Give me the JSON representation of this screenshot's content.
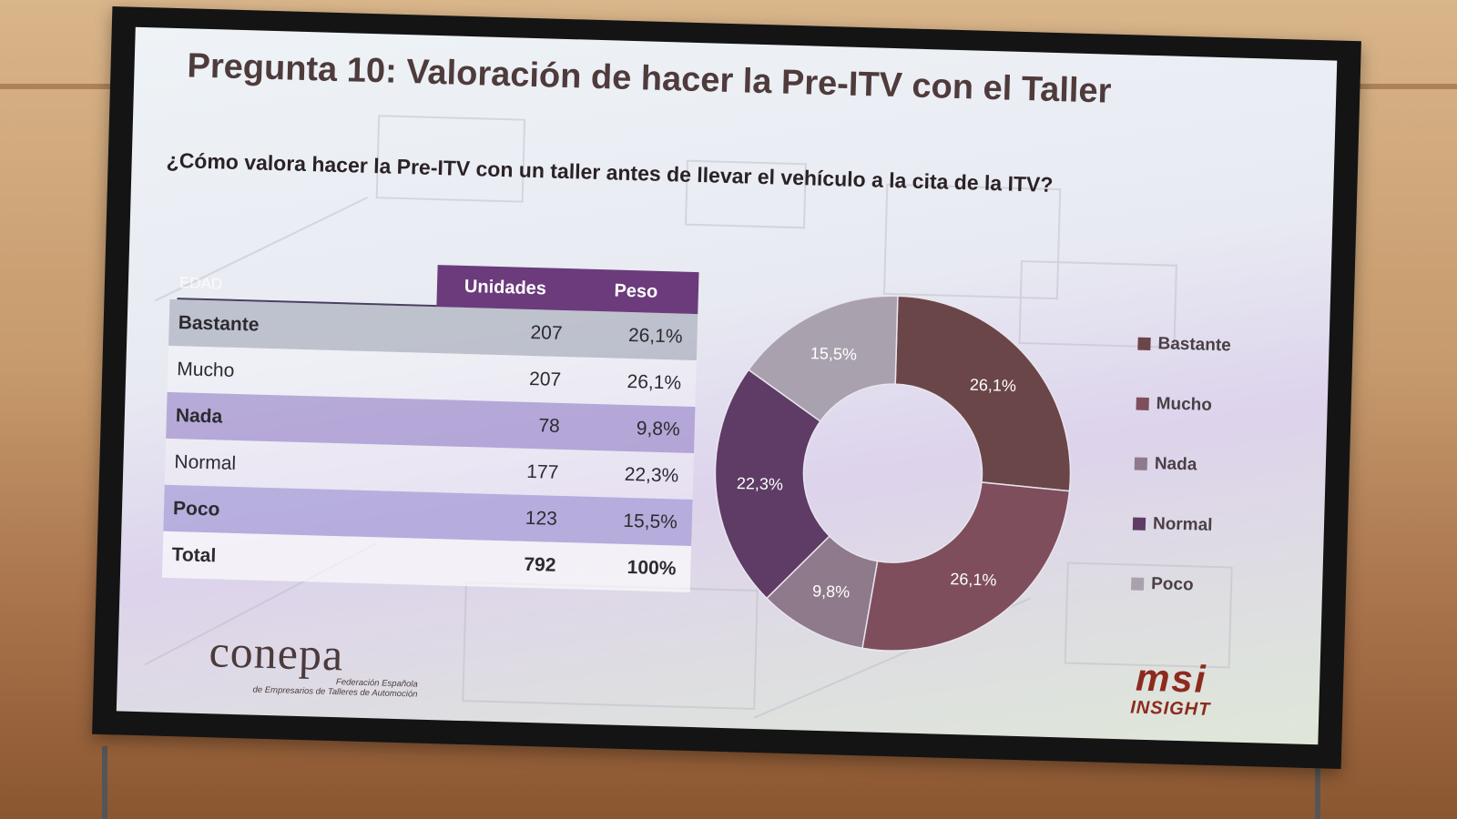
{
  "slide": {
    "title": "Pregunta 10: Valoración de hacer la Pre-ITV con el Taller",
    "question": "¿Cómo valora hacer la Pre-ITV con un taller antes de llevar el vehículo a la cita de la ITV?"
  },
  "table": {
    "faded_header": "EDAD",
    "headers": [
      "Unidades",
      "Peso"
    ],
    "rows": [
      {
        "label": "Bastante",
        "units": "207",
        "pct": "26,1%"
      },
      {
        "label": "Mucho",
        "units": "207",
        "pct": "26,1%"
      },
      {
        "label": "Nada",
        "units": "78",
        "pct": "9,8%"
      },
      {
        "label": "Normal",
        "units": "177",
        "pct": "22,3%"
      },
      {
        "label": "Poco",
        "units": "123",
        "pct": "15,5%"
      }
    ],
    "total": {
      "label": "Total",
      "units": "792",
      "pct": "100%"
    }
  },
  "chart_data": {
    "type": "pie",
    "variant": "donut",
    "title": "",
    "categories": [
      "Bastante",
      "Mucho",
      "Nada",
      "Normal",
      "Poco"
    ],
    "values": [
      26.1,
      26.1,
      9.8,
      22.3,
      15.5
    ],
    "units": [
      207,
      207,
      78,
      177,
      123
    ],
    "data_labels": [
      "26,1%",
      "26,1%",
      "9,8%",
      "22,3%",
      "15,5%"
    ],
    "colors": [
      "#6b4648",
      "#7e4e5c",
      "#8e7a8a",
      "#5e3c66",
      "#a9a2ae"
    ],
    "legend": "right"
  },
  "logos": {
    "left_name": "conepa",
    "left_sub1": "Federación Española",
    "left_sub2": "de Empresarios de Talleres de Automoción",
    "right_name": "msi",
    "right_sub": "INSIGHT"
  }
}
